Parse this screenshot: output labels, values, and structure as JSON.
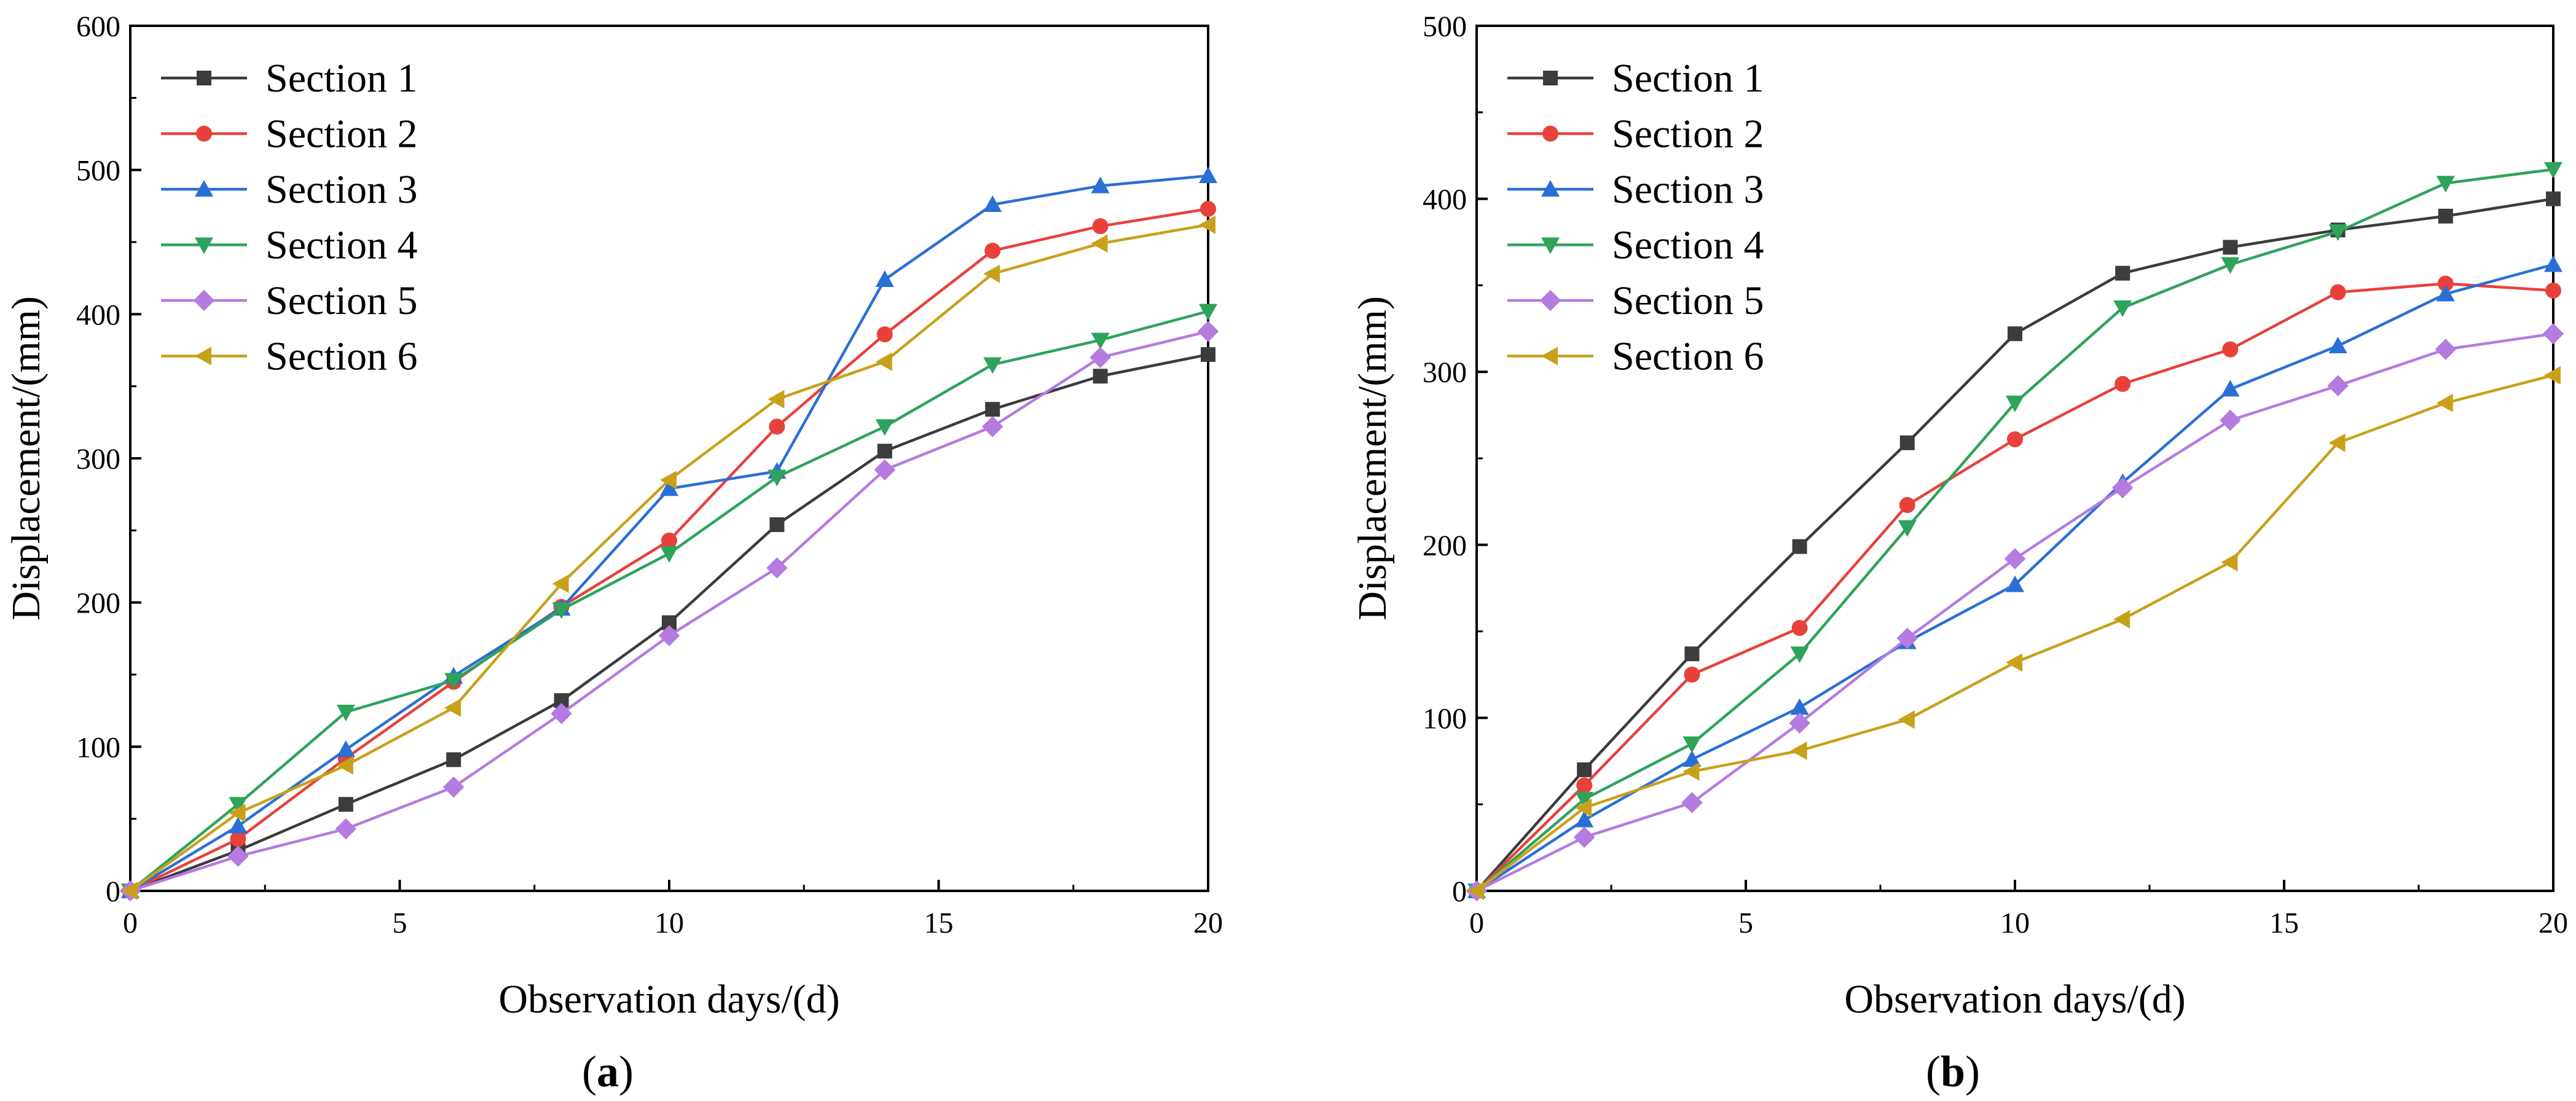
{
  "panels": [
    {
      "label": "a",
      "label_text": "(a)",
      "chart_data": {
        "type": "line",
        "xlabel": "Observation days/(d)",
        "ylabel": "Displacement/(mm)",
        "xlim": [
          0,
          20
        ],
        "ylim": [
          0,
          600
        ],
        "xticks": [
          0,
          5,
          10,
          15,
          20
        ],
        "yticks": [
          0,
          100,
          200,
          300,
          400,
          500,
          600
        ],
        "grid": false,
        "legend_position": "top-left",
        "x": [
          0,
          2,
          4,
          6,
          8,
          10,
          12,
          14,
          16,
          18,
          20
        ],
        "series": [
          {
            "name": "Section 1",
            "color": "#3c3c3c",
            "marker": "square",
            "values": [
              0,
              28,
              60,
              91,
              132,
              186,
              254,
              305,
              334,
              357,
              372
            ]
          },
          {
            "name": "Section 2",
            "color": "#e8413c",
            "marker": "circle",
            "values": [
              0,
              36,
              92,
              145,
              197,
              243,
              322,
              386,
              444,
              461,
              473
            ]
          },
          {
            "name": "Section 3",
            "color": "#2a6fd6",
            "marker": "triangle-up",
            "values": [
              0,
              45,
              98,
              149,
              196,
              279,
              291,
              424,
              476,
              489,
              496
            ]
          },
          {
            "name": "Section 4",
            "color": "#2ea35a",
            "marker": "triangle-down",
            "values": [
              0,
              60,
              124,
              146,
              195,
              234,
              287,
              322,
              365,
              382,
              402
            ]
          },
          {
            "name": "Section 5",
            "color": "#b57be0",
            "marker": "diamond",
            "values": [
              0,
              24,
              43,
              72,
              123,
              177,
              224,
              292,
              322,
              370,
              388
            ]
          },
          {
            "name": "Section 6",
            "color": "#c8a11b",
            "marker": "triangle-left",
            "values": [
              0,
              54,
              87,
              127,
              213,
              285,
              341,
              367,
              428,
              449,
              462
            ]
          }
        ]
      }
    },
    {
      "label": "b",
      "label_text": "(b)",
      "chart_data": {
        "type": "line",
        "xlabel": "Observation days/(d)",
        "ylabel": "Displacement/(mm)",
        "xlim": [
          0,
          20
        ],
        "ylim": [
          0,
          500
        ],
        "xticks": [
          0,
          5,
          10,
          15,
          20
        ],
        "yticks": [
          0,
          100,
          200,
          300,
          400,
          500
        ],
        "grid": false,
        "legend_position": "top-left",
        "x": [
          0,
          2,
          4,
          6,
          8,
          10,
          12,
          14,
          16,
          18,
          20
        ],
        "series": [
          {
            "name": "Section 1",
            "color": "#3c3c3c",
            "marker": "square",
            "values": [
              0,
              70,
              137,
              199,
              259,
              322,
              357,
              372,
              382,
              390,
              400
            ]
          },
          {
            "name": "Section 2",
            "color": "#e8413c",
            "marker": "circle",
            "values": [
              0,
              61,
              125,
              152,
              223,
              261,
              293,
              313,
              346,
              351,
              347
            ]
          },
          {
            "name": "Section 3",
            "color": "#2a6fd6",
            "marker": "triangle-up",
            "values": [
              0,
              41,
              76,
              106,
              144,
              177,
              236,
              290,
              315,
              345,
              362
            ]
          },
          {
            "name": "Section 4",
            "color": "#2ea35a",
            "marker": "triangle-down",
            "values": [
              0,
              53,
              85,
              137,
              210,
              282,
              337,
              362,
              381,
              409,
              417
            ]
          },
          {
            "name": "Section 5",
            "color": "#b57be0",
            "marker": "diamond",
            "values": [
              0,
              31,
              51,
              97,
              146,
              192,
              233,
              272,
              292,
              313,
              322
            ]
          },
          {
            "name": "Section 6",
            "color": "#c8a11b",
            "marker": "triangle-left",
            "values": [
              0,
              48,
              69,
              81,
              99,
              132,
              157,
              190,
              259,
              282,
              298
            ]
          }
        ]
      }
    }
  ]
}
